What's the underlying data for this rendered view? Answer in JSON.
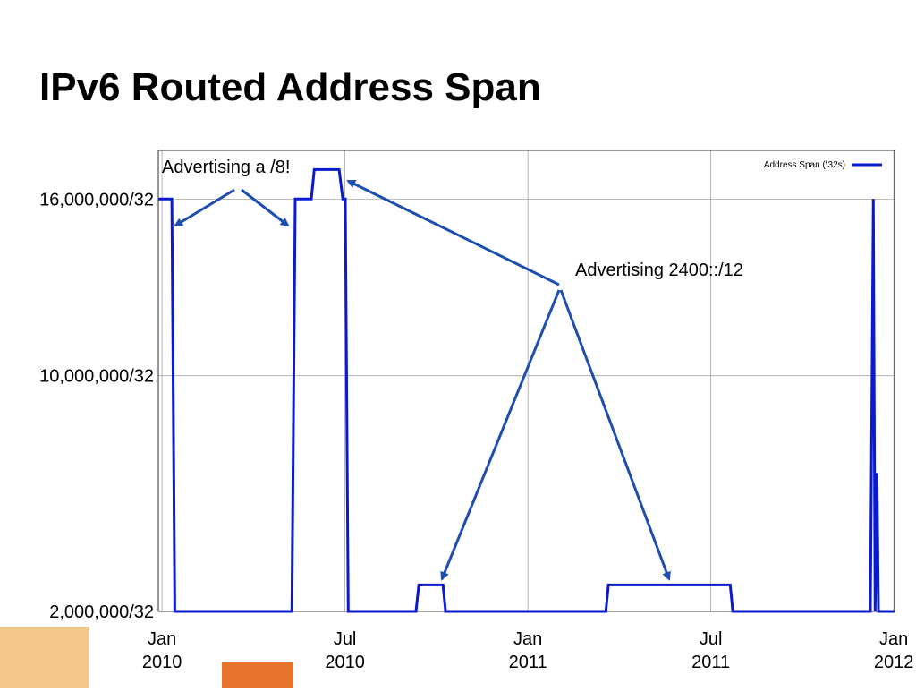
{
  "chart_data": {
    "type": "line",
    "title": "IPv6 Routed Address Span",
    "annotations": [
      "Advertising a /8!",
      "Advertising 2400::/12"
    ],
    "x": [
      2009.99,
      2010.027,
      2010.035,
      2010.355,
      2010.364,
      2010.408,
      2010.416,
      2010.484,
      2010.494,
      2010.501,
      2010.509,
      2010.694,
      2010.702,
      2010.768,
      2010.775,
      2011.213,
      2011.22,
      2011.553,
      2011.56,
      2011.936,
      2011.944,
      2011.949,
      2011.954,
      2011.958,
      2012.002
    ],
    "series": [
      {
        "name": "Address Span (\\32s)",
        "color": "#0a1ad0",
        "values": [
          16000000,
          16000000,
          2000000,
          2000000,
          16000000,
          16000000,
          17000000,
          17000000,
          16000000,
          16000000,
          2000000,
          2000000,
          2900000,
          2900000,
          2000000,
          2000000,
          2900000,
          2900000,
          2000000,
          2000000,
          16000000,
          2000000,
          6700000,
          2000000,
          2000000
        ]
      }
    ],
    "xlim": [
      2009.99,
      2012.002
    ],
    "xticks": [
      {
        "value": 2010,
        "label": "Jan\n2010"
      },
      {
        "value": 2010.5,
        "label": "Jul\n2010"
      },
      {
        "value": 2011,
        "label": "Jan\n2011"
      },
      {
        "value": 2011.5,
        "label": "Jul\n2011"
      },
      {
        "value": 2012,
        "label": "Jan\n2012"
      }
    ],
    "ylim": [
      2000000,
      17650000
    ],
    "yticks": [
      {
        "value": 2000000,
        "label": "2,000,000/32"
      },
      {
        "value": 10000000,
        "label": "10,000,000/32"
      },
      {
        "value": 16000000,
        "label": "16,000,000/32"
      }
    ],
    "grid": true,
    "legend": "top-right"
  }
}
